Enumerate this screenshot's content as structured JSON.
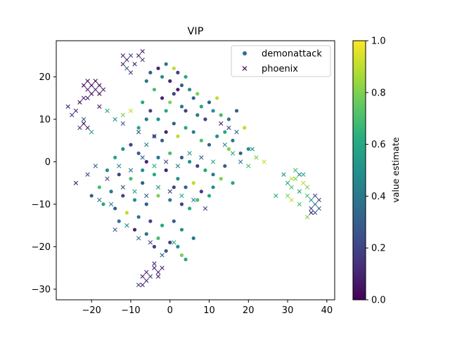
{
  "chart_data": {
    "type": "scatter",
    "title": "VIP",
    "xlabel": "",
    "ylabel": "",
    "xlim": [
      -29,
      42
    ],
    "ylim": [
      -32.5,
      28.5
    ],
    "xticks": [
      -20,
      -10,
      0,
      10,
      20,
      30,
      40
    ],
    "yticks": [
      -30,
      -20,
      -10,
      0,
      10,
      20
    ],
    "xtick_labels": [
      "−20",
      "−10",
      "0",
      "10",
      "20",
      "30",
      "40"
    ],
    "ytick_labels": [
      "−30",
      "−20",
      "−10",
      "0",
      "10",
      "20"
    ],
    "legend": {
      "placement": "top-right",
      "entries": [
        {
          "label": "demonattack",
          "marker": "circle"
        },
        {
          "label": "phoenix",
          "marker": "x"
        }
      ]
    },
    "colorbar": {
      "label": "value estimate",
      "range": [
        0.0,
        1.0
      ],
      "ticks": [
        "0.0",
        "0.2",
        "0.4",
        "0.6",
        "0.8",
        "1.0"
      ],
      "colormap": "viridis"
    },
    "series": [
      {
        "name": "demonattack",
        "marker": "circle",
        "points": [
          [
            -3,
            22,
            0.1
          ],
          [
            -1,
            23,
            0.4
          ],
          [
            1,
            22,
            0.9
          ],
          [
            -5,
            21,
            0.3
          ],
          [
            -2,
            20,
            0.5
          ],
          [
            2,
            21,
            0.2
          ],
          [
            4,
            20,
            0.6
          ],
          [
            0,
            19,
            0.1
          ],
          [
            -6,
            19,
            0.4
          ],
          [
            3,
            18,
            0.3
          ],
          [
            -4,
            17,
            0.7
          ],
          [
            1,
            16,
            0.2
          ],
          [
            5,
            17,
            0.5
          ],
          [
            -2,
            15,
            0.1
          ],
          [
            -7,
            14,
            0.6
          ],
          [
            6,
            15,
            0.3
          ],
          [
            0,
            14,
            0.8
          ],
          [
            3,
            13,
            0.4
          ],
          [
            -5,
            12,
            0.2
          ],
          [
            8,
            13,
            0.6
          ],
          [
            10,
            14,
            0.3
          ],
          [
            12,
            15,
            0.9
          ],
          [
            11,
            12,
            0.5
          ],
          [
            13,
            11,
            0.7
          ],
          [
            9,
            10,
            0.2
          ],
          [
            7,
            11,
            0.4
          ],
          [
            -3,
            10,
            0.5
          ],
          [
            1,
            9,
            0.3
          ],
          [
            4,
            8,
            0.6
          ],
          [
            -1,
            7,
            0.1
          ],
          [
            2,
            6,
            0.9
          ],
          [
            6,
            7,
            0.4
          ],
          [
            -4,
            6,
            0.2
          ],
          [
            8,
            5,
            0.7
          ],
          [
            10,
            4,
            0.3
          ],
          [
            12,
            6,
            0.5
          ],
          [
            14,
            7,
            0.6
          ],
          [
            16,
            5,
            0.4
          ],
          [
            15,
            3,
            0.8
          ],
          [
            18,
            2,
            0.3
          ],
          [
            -10,
            4,
            0.2
          ],
          [
            -12,
            3,
            0.5
          ],
          [
            -8,
            2,
            0.3
          ],
          [
            -14,
            1,
            0.6
          ],
          [
            -6,
            0,
            0.1
          ],
          [
            -3,
            1,
            0.4
          ],
          [
            0,
            2,
            0.7
          ],
          [
            3,
            1,
            0.3
          ],
          [
            5,
            0,
            0.5
          ],
          [
            7,
            -1,
            0.2
          ],
          [
            9,
            -2,
            0.6
          ],
          [
            11,
            -3,
            0.4
          ],
          [
            13,
            -4,
            0.8
          ],
          [
            -16,
            -2,
            0.5
          ],
          [
            -13,
            -3,
            0.2
          ],
          [
            -10,
            -4,
            0.7
          ],
          [
            -7,
            -5,
            0.3
          ],
          [
            -4,
            -3,
            0.6
          ],
          [
            -1,
            -2,
            0.1
          ],
          [
            2,
            -4,
            0.5
          ],
          [
            4,
            -6,
            0.3
          ],
          [
            6,
            -5,
            0.9
          ],
          [
            8,
            -7,
            0.2
          ],
          [
            10,
            -8,
            0.6
          ],
          [
            -18,
            -6,
            0.7
          ],
          [
            -15,
            -7,
            0.4
          ],
          [
            -12,
            -8,
            0.2
          ],
          [
            -9,
            -9,
            0.5
          ],
          [
            -6,
            -10,
            0.3
          ],
          [
            -3,
            -8,
            0.8
          ],
          [
            0,
            -9,
            0.4
          ],
          [
            3,
            -10,
            0.2
          ],
          [
            5,
            -11,
            0.6
          ],
          [
            -14,
            -11,
            0.3
          ],
          [
            -11,
            -12,
            0.9
          ],
          [
            -8,
            -13,
            0.4
          ],
          [
            -5,
            -14,
            0.2
          ],
          [
            -2,
            -15,
            0.6
          ],
          [
            1,
            -14,
            0.3
          ],
          [
            3,
            -16,
            0.5
          ],
          [
            -9,
            -16,
            0.1
          ],
          [
            -6,
            -17,
            0.4
          ],
          [
            -3,
            -18,
            0.7
          ],
          [
            0,
            -19,
            0.2
          ],
          [
            2,
            -20,
            0.5
          ],
          [
            -1,
            -21,
            0.3
          ],
          [
            3,
            -22,
            0.8
          ],
          [
            4,
            -23,
            0.6
          ],
          [
            -4,
            -20,
            0.2
          ],
          [
            6,
            -18,
            0.4
          ],
          [
            -20,
            -8,
            0.3
          ],
          [
            -17,
            -10,
            0.6
          ],
          [
            -13,
            -14,
            0.4
          ],
          [
            -7,
            -2,
            0.5
          ],
          [
            1,
            -6,
            0.2
          ],
          [
            7,
            -9,
            0.7
          ],
          [
            11,
            -6,
            0.5
          ],
          [
            14,
            -1,
            0.3
          ],
          [
            16,
            -5,
            0.6
          ],
          [
            -2,
            5,
            0.3
          ],
          [
            -8,
            8,
            0.6
          ],
          [
            -6,
            10,
            0.4
          ],
          [
            4,
            12,
            0.2
          ],
          [
            7,
            16,
            0.8
          ],
          [
            2,
            17,
            0.1
          ],
          [
            -1,
            12,
            0.6
          ],
          [
            15,
            10,
            0.4
          ],
          [
            19,
            8,
            0.9
          ],
          [
            17,
            12,
            0.3
          ],
          [
            20,
            3,
            0.5
          ]
        ]
      },
      {
        "name": "phoenix",
        "marker": "x",
        "points": [
          [
            -12,
            25,
            0.1
          ],
          [
            -11,
            24,
            0.1
          ],
          [
            -10,
            25,
            0.2
          ],
          [
            -12,
            23,
            0.1
          ],
          [
            -8,
            25,
            0.1
          ],
          [
            -7,
            24,
            0.2
          ],
          [
            -9,
            23,
            0.1
          ],
          [
            -11,
            22,
            0.3
          ],
          [
            -7,
            26,
            0.1
          ],
          [
            -10,
            21,
            0.2
          ],
          [
            -20,
            18,
            0.0
          ],
          [
            -19,
            19,
            0.0
          ],
          [
            -21,
            17,
            0.1
          ],
          [
            -18,
            18,
            0.0
          ],
          [
            -20,
            16,
            0.0
          ],
          [
            -19,
            17,
            0.1
          ],
          [
            -22,
            18,
            0.0
          ],
          [
            -17,
            17,
            0.1
          ],
          [
            -21,
            19,
            0.0
          ],
          [
            -18,
            16,
            0.0
          ],
          [
            -22,
            15,
            0.1
          ],
          [
            -23,
            14,
            0.0
          ],
          [
            -21,
            15,
            0.1
          ],
          [
            -26,
            13,
            0.1
          ],
          [
            -25,
            11,
            0.2
          ],
          [
            -24,
            12,
            0.1
          ],
          [
            -18,
            13,
            0.1
          ],
          [
            -16,
            12,
            0.6
          ],
          [
            -12,
            11,
            0.8
          ],
          [
            -10,
            12,
            0.9
          ],
          [
            -22,
            9,
            0.0
          ],
          [
            -21,
            8,
            0.1
          ],
          [
            -23,
            8,
            0.2
          ],
          [
            -20,
            7,
            0.6
          ],
          [
            -22,
            10,
            0.3
          ],
          [
            -14,
            10,
            0.5
          ],
          [
            -12,
            9,
            0.3
          ],
          [
            -8,
            7,
            0.2
          ],
          [
            -4,
            6,
            0.3
          ],
          [
            -6,
            4,
            0.4
          ],
          [
            13,
            9,
            0.1
          ],
          [
            15,
            8,
            0.2
          ],
          [
            17,
            7,
            0.3
          ],
          [
            14,
            4,
            0.5
          ],
          [
            16,
            2,
            0.6
          ],
          [
            18,
            0,
            0.4
          ],
          [
            20,
            -1,
            0.7
          ],
          [
            22,
            1,
            0.8
          ],
          [
            24,
            0,
            0.9
          ],
          [
            21,
            3,
            0.5
          ],
          [
            -24,
            -5,
            0.1
          ],
          [
            -21,
            -3,
            0.2
          ],
          [
            -19,
            -1,
            0.3
          ],
          [
            -16,
            -4,
            0.2
          ],
          [
            -13,
            -1,
            0.5
          ],
          [
            -10,
            -2,
            0.4
          ],
          [
            -7,
            1,
            0.3
          ],
          [
            -4,
            -1,
            0.6
          ],
          [
            -1,
            0,
            0.2
          ],
          [
            2,
            -1,
            0.4
          ],
          [
            5,
            2,
            0.5
          ],
          [
            8,
            1,
            0.3
          ],
          [
            11,
            0,
            0.6
          ],
          [
            -18,
            -9,
            0.4
          ],
          [
            -15,
            -10,
            0.5
          ],
          [
            -12,
            -6,
            0.2
          ],
          [
            -9,
            -7,
            0.6
          ],
          [
            -6,
            -8,
            0.3
          ],
          [
            -3,
            -6,
            0.5
          ],
          [
            0,
            -7,
            0.2
          ],
          [
            3,
            -8,
            0.6
          ],
          [
            6,
            -9,
            0.4
          ],
          [
            9,
            -11,
            0.2
          ],
          [
            -14,
            -16,
            0.3
          ],
          [
            -11,
            -15,
            0.5
          ],
          [
            -8,
            -18,
            0.4
          ],
          [
            -5,
            -19,
            0.2
          ],
          [
            -2,
            -22,
            0.3
          ],
          [
            1,
            -19,
            0.6
          ],
          [
            -4,
            -24,
            0.1
          ],
          [
            -3,
            -26,
            0.1
          ],
          [
            -4,
            -25,
            0.1
          ],
          [
            -5,
            -27,
            0.2
          ],
          [
            -2,
            -25,
            0.1
          ],
          [
            -6,
            -28,
            0.1
          ],
          [
            -7,
            -27,
            0.1
          ],
          [
            -8,
            -29,
            0.2
          ],
          [
            -3,
            -27,
            0.1
          ],
          [
            -6,
            -26,
            0.1
          ],
          [
            -7,
            -29,
            0.1
          ],
          [
            30,
            -5,
            0.6
          ],
          [
            31,
            -6,
            0.7
          ],
          [
            32,
            -4,
            0.8
          ],
          [
            33,
            -7,
            0.6
          ],
          [
            34,
            -5,
            0.9
          ],
          [
            35,
            -8,
            0.7
          ],
          [
            36,
            -9,
            0.5
          ],
          [
            37,
            -10,
            0.4
          ],
          [
            38,
            -9,
            0.2
          ],
          [
            37,
            -12,
            0.3
          ],
          [
            36,
            -11,
            0.2
          ],
          [
            35,
            -13,
            0.8
          ],
          [
            33,
            -10,
            0.7
          ],
          [
            31,
            -9,
            0.9
          ],
          [
            30,
            -8,
            0.8
          ],
          [
            32,
            -2,
            0.7
          ],
          [
            34,
            -3,
            0.6
          ],
          [
            29,
            -3,
            0.5
          ],
          [
            38,
            -11,
            0.3
          ],
          [
            37,
            -8,
            0.2
          ],
          [
            27,
            -8,
            0.6
          ],
          [
            31,
            -4,
            0.9
          ],
          [
            35,
            -6,
            0.8
          ],
          [
            33,
            -3,
            0.4
          ],
          [
            36,
            -12,
            0.1
          ]
        ]
      }
    ]
  }
}
